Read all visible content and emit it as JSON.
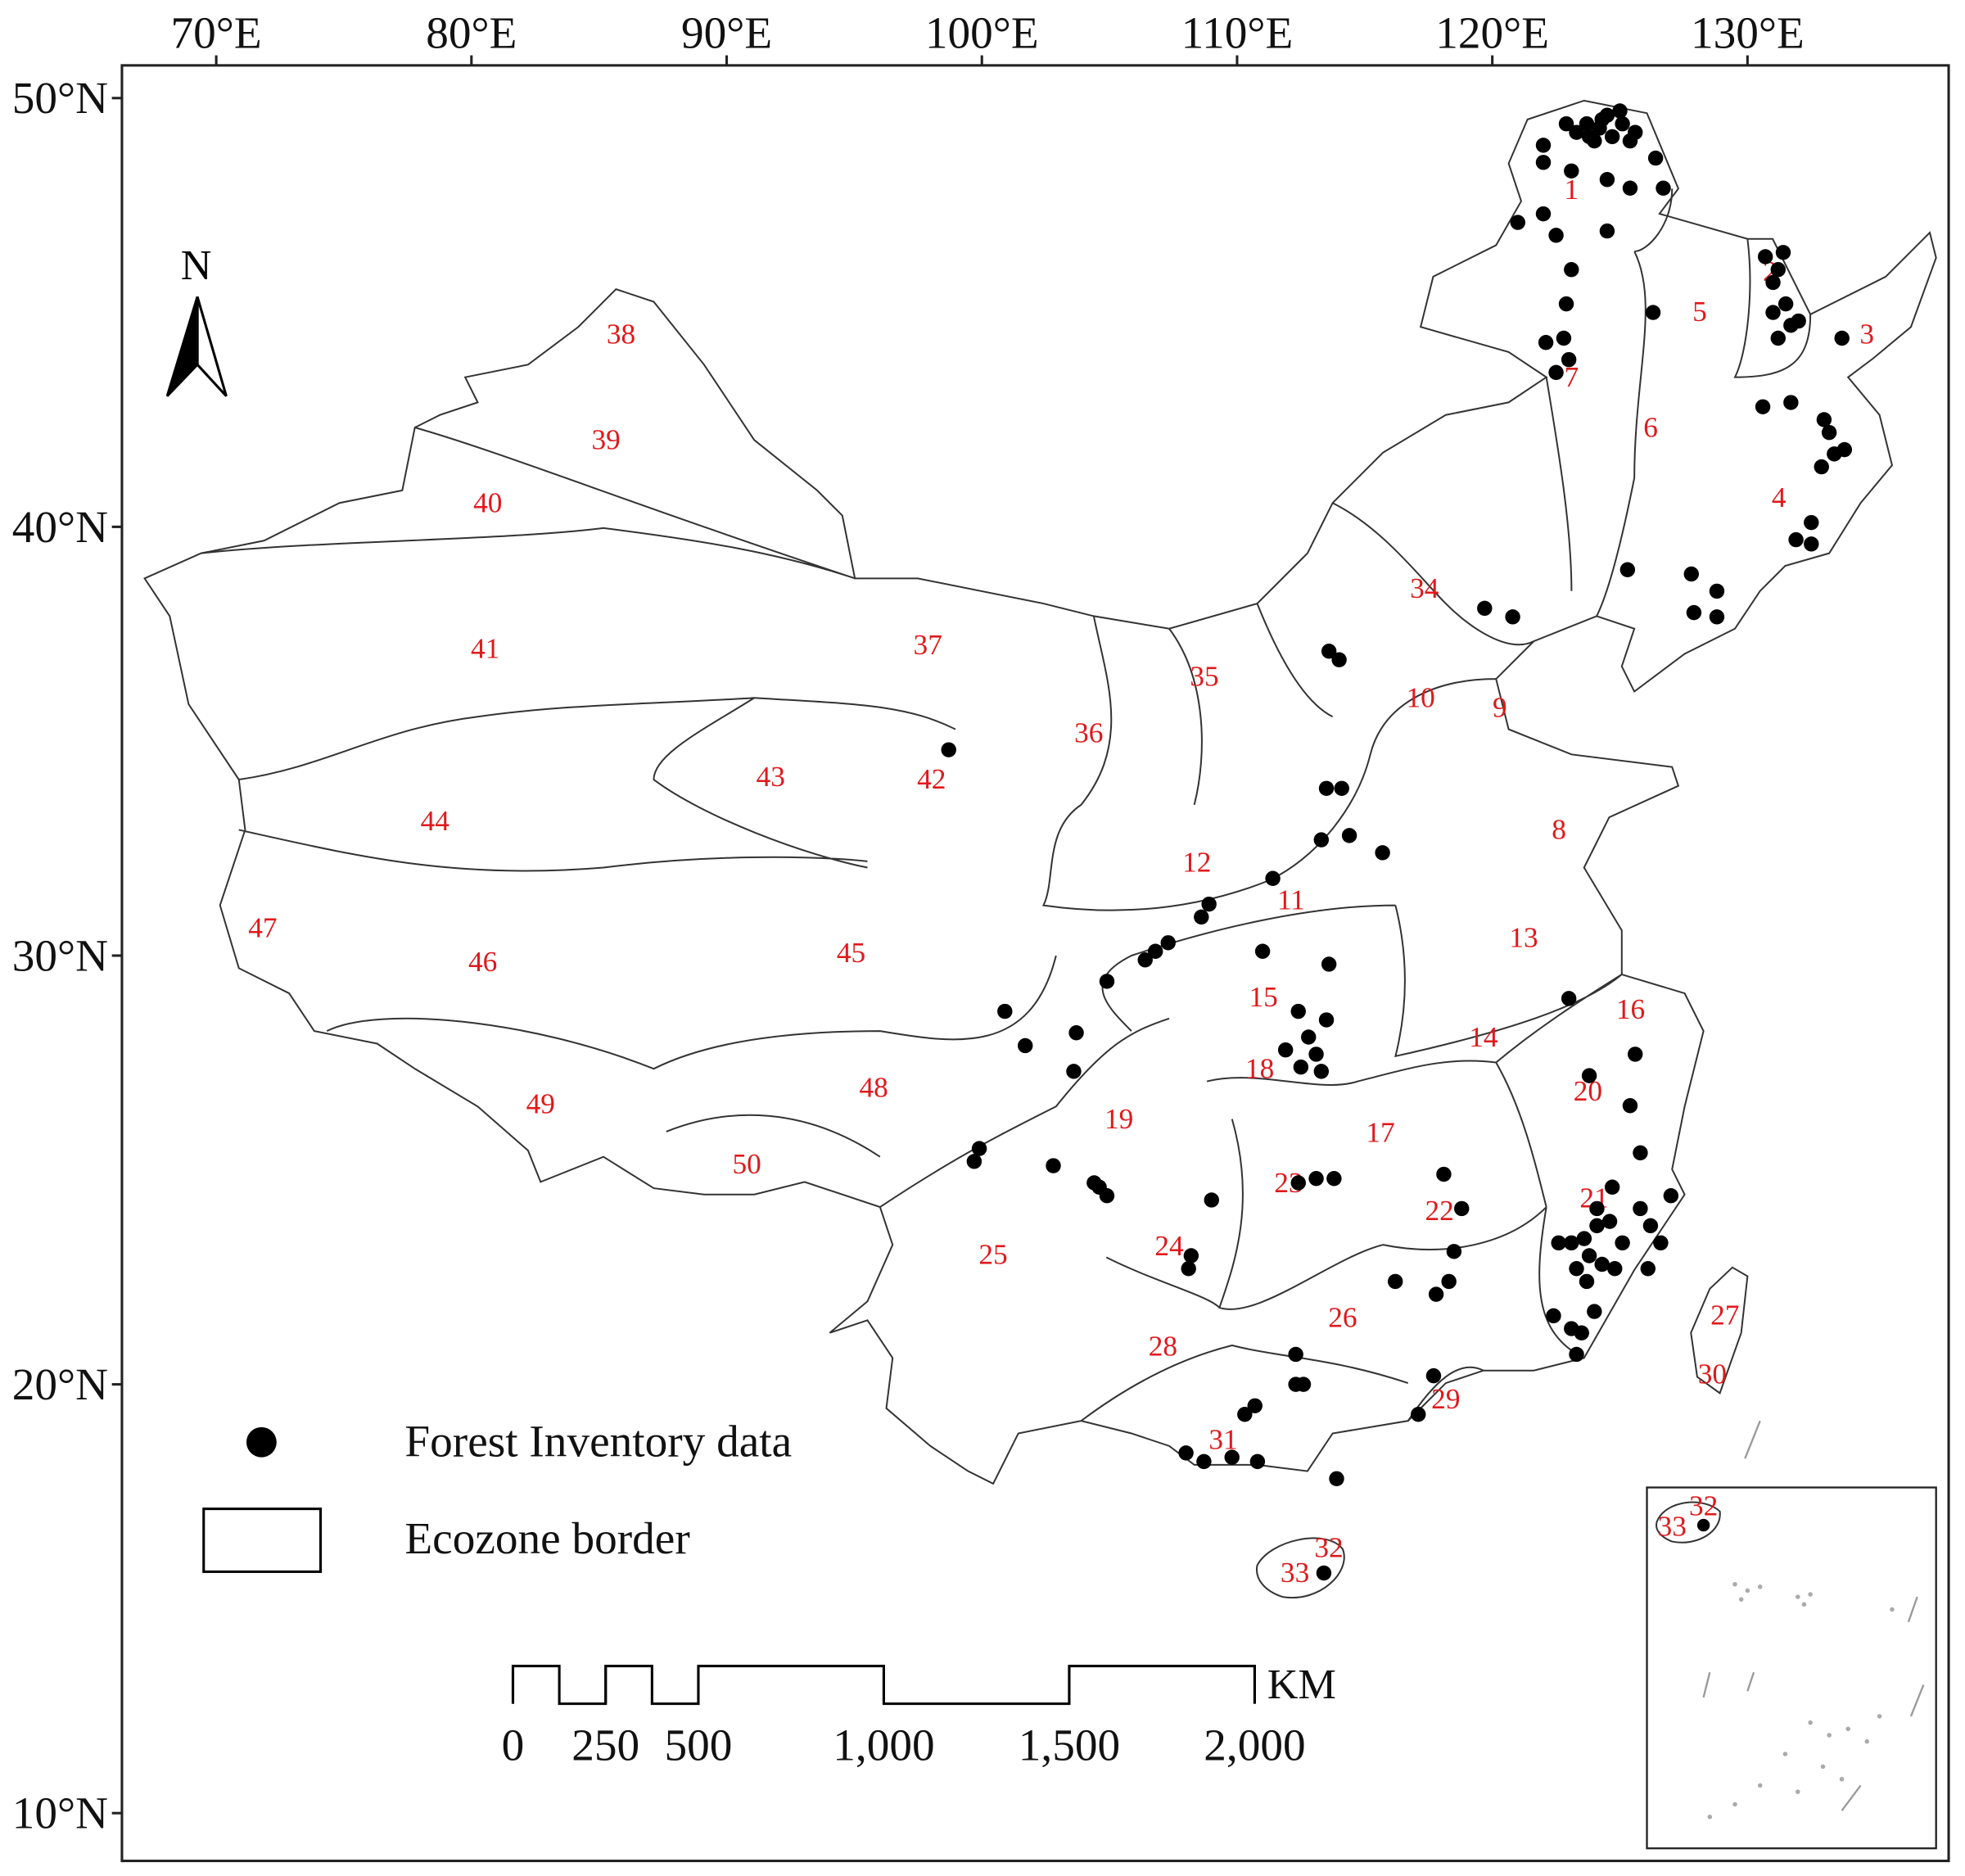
{
  "map": {
    "lon_ticks": [
      {
        "value": 70,
        "label": "70°E"
      },
      {
        "value": 80,
        "label": "80°E"
      },
      {
        "value": 90,
        "label": "90°E"
      },
      {
        "value": 100,
        "label": "100°E"
      },
      {
        "value": 110,
        "label": "110°E"
      },
      {
        "value": 120,
        "label": "120°E"
      },
      {
        "value": 130,
        "label": "130°E"
      }
    ],
    "lat_ticks": [
      {
        "value": 50,
        "label": "50°N"
      },
      {
        "value": 40,
        "label": "40°N"
      },
      {
        "value": 30,
        "label": "30°N"
      },
      {
        "value": 20,
        "label": "20°N"
      },
      {
        "value": 10,
        "label": "10°N"
      }
    ],
    "north": "N",
    "zones": [
      "1",
      "2",
      "3",
      "4",
      "5",
      "6",
      "7",
      "8",
      "9",
      "10",
      "11",
      "12",
      "13",
      "14",
      "15",
      "16",
      "17",
      "18",
      "19",
      "20",
      "21",
      "22",
      "23",
      "24",
      "25",
      "26",
      "27",
      "28",
      "29",
      "30",
      "31",
      "32",
      "33",
      "34",
      "35",
      "36",
      "37",
      "38",
      "39",
      "40",
      "41",
      "42",
      "43",
      "44",
      "45",
      "46",
      "47",
      "48",
      "49",
      "50"
    ],
    "inset_labels": [
      "32",
      "33"
    ],
    "legend": {
      "points": "Forest Inventory data",
      "border": "Ecozone border"
    },
    "scale": {
      "unit": "KM",
      "ticks": [
        0,
        250,
        500,
        {
          "value": 1000,
          "label": "1,000"
        },
        {
          "value": 1500,
          "label": "1,500"
        },
        {
          "value": 2000,
          "label": "2,000"
        }
      ]
    },
    "points": [
      [
        123.7,
        49.4
      ],
      [
        124.3,
        49.5
      ],
      [
        125.1,
        49.4
      ],
      [
        125.6,
        49.2
      ],
      [
        124.7,
        49.1
      ],
      [
        124.0,
        49.0
      ],
      [
        123.3,
        49.2
      ],
      [
        122.9,
        49.4
      ],
      [
        124.5,
        49.6
      ],
      [
        125.0,
        49.7
      ],
      [
        124.2,
        49.3
      ],
      [
        125.4,
        49.0
      ],
      [
        123.8,
        49.1
      ],
      [
        122.0,
        48.9
      ],
      [
        122.0,
        48.5
      ],
      [
        123.1,
        48.3
      ],
      [
        124.5,
        48.1
      ],
      [
        125.4,
        47.9
      ],
      [
        126.4,
        48.6
      ],
      [
        126.7,
        47.9
      ],
      [
        121.0,
        47.1
      ],
      [
        122.0,
        47.3
      ],
      [
        122.5,
        46.8
      ],
      [
        124.5,
        46.9
      ],
      [
        123.1,
        46.0
      ],
      [
        122.9,
        45.2
      ],
      [
        122.1,
        44.3
      ],
      [
        122.8,
        44.4
      ],
      [
        123.0,
        43.9
      ],
      [
        122.5,
        43.6
      ],
      [
        126.3,
        45.0
      ],
      [
        130.7,
        46.3
      ],
      [
        131.2,
        46.0
      ],
      [
        131.0,
        45.7
      ],
      [
        131.5,
        45.2
      ],
      [
        131.0,
        45.0
      ],
      [
        131.7,
        44.7
      ],
      [
        131.2,
        44.4
      ],
      [
        132.0,
        44.8
      ],
      [
        131.4,
        46.4
      ],
      [
        133.7,
        44.4
      ],
      [
        130.6,
        42.8
      ],
      [
        131.7,
        42.9
      ],
      [
        133.0,
        42.5
      ],
      [
        133.2,
        42.2
      ],
      [
        132.9,
        41.4
      ],
      [
        133.4,
        41.7
      ],
      [
        133.8,
        41.8
      ],
      [
        132.5,
        40.1
      ],
      [
        131.9,
        39.7
      ],
      [
        132.5,
        39.6
      ],
      [
        125.3,
        39.0
      ],
      [
        127.8,
        38.9
      ],
      [
        127.9,
        38.0
      ],
      [
        128.8,
        38.5
      ],
      [
        128.8,
        37.9
      ],
      [
        119.7,
        38.1
      ],
      [
        120.8,
        37.9
      ],
      [
        113.6,
        37.1
      ],
      [
        114.0,
        36.9
      ],
      [
        98.7,
        34.8
      ],
      [
        113.5,
        33.9
      ],
      [
        114.1,
        33.9
      ],
      [
        114.4,
        32.8
      ],
      [
        113.3,
        32.7
      ],
      [
        115.7,
        32.4
      ],
      [
        111.4,
        31.8
      ],
      [
        108.9,
        31.2
      ],
      [
        108.6,
        30.9
      ],
      [
        111.0,
        30.1
      ],
      [
        113.6,
        29.8
      ],
      [
        106.4,
        29.9
      ],
      [
        106.8,
        30.1
      ],
      [
        107.3,
        30.3
      ],
      [
        104.9,
        29.4
      ],
      [
        100.9,
        28.7
      ],
      [
        101.7,
        27.9
      ],
      [
        103.7,
        28.2
      ],
      [
        103.6,
        27.3
      ],
      [
        99.9,
        25.5
      ],
      [
        99.7,
        25.2
      ],
      [
        102.8,
        25.1
      ],
      [
        104.6,
        24.6
      ],
      [
        104.9,
        24.4
      ],
      [
        104.4,
        24.7
      ],
      [
        109.0,
        24.3
      ],
      [
        112.4,
        28.7
      ],
      [
        113.5,
        28.5
      ],
      [
        112.8,
        28.1
      ],
      [
        113.1,
        27.7
      ],
      [
        111.9,
        27.8
      ],
      [
        112.5,
        27.4
      ],
      [
        113.3,
        27.3
      ],
      [
        113.1,
        24.8
      ],
      [
        113.8,
        24.8
      ],
      [
        112.4,
        24.7
      ],
      [
        108.2,
        23.0
      ],
      [
        108.1,
        22.7
      ],
      [
        118.1,
        24.9
      ],
      [
        118.8,
        24.1
      ],
      [
        118.5,
        23.1
      ],
      [
        118.3,
        22.4
      ],
      [
        117.8,
        22.1
      ],
      [
        116.2,
        22.4
      ],
      [
        123.8,
        27.2
      ],
      [
        125.6,
        27.7
      ],
      [
        125.4,
        26.5
      ],
      [
        123.0,
        29.0
      ],
      [
        125.8,
        25.4
      ],
      [
        123.1,
        23.3
      ],
      [
        123.6,
        23.4
      ],
      [
        124.1,
        23.7
      ],
      [
        124.6,
        23.8
      ],
      [
        123.8,
        23.0
      ],
      [
        124.3,
        22.8
      ],
      [
        123.3,
        22.7
      ],
      [
        125.1,
        23.3
      ],
      [
        124.8,
        22.7
      ],
      [
        124.1,
        24.1
      ],
      [
        124.7,
        24.6
      ],
      [
        125.8,
        24.1
      ],
      [
        126.2,
        23.7
      ],
      [
        126.6,
        23.3
      ],
      [
        127.0,
        24.4
      ],
      [
        126.1,
        22.7
      ],
      [
        122.6,
        23.3
      ],
      [
        123.7,
        22.4
      ],
      [
        122.4,
        21.6
      ],
      [
        123.1,
        21.3
      ],
      [
        124.0,
        21.7
      ],
      [
        123.5,
        21.2
      ],
      [
        123.3,
        20.7
      ],
      [
        112.3,
        20.7
      ],
      [
        112.3,
        20.0
      ],
      [
        112.6,
        20.0
      ],
      [
        110.7,
        19.5
      ],
      [
        110.3,
        19.3
      ],
      [
        108.0,
        18.4
      ],
      [
        108.7,
        18.2
      ],
      [
        109.8,
        18.3
      ],
      [
        110.8,
        18.2
      ],
      [
        113.9,
        17.8
      ],
      [
        117.1,
        19.3
      ],
      [
        117.7,
        20.2
      ],
      [
        113.4,
        15.6
      ]
    ]
  }
}
